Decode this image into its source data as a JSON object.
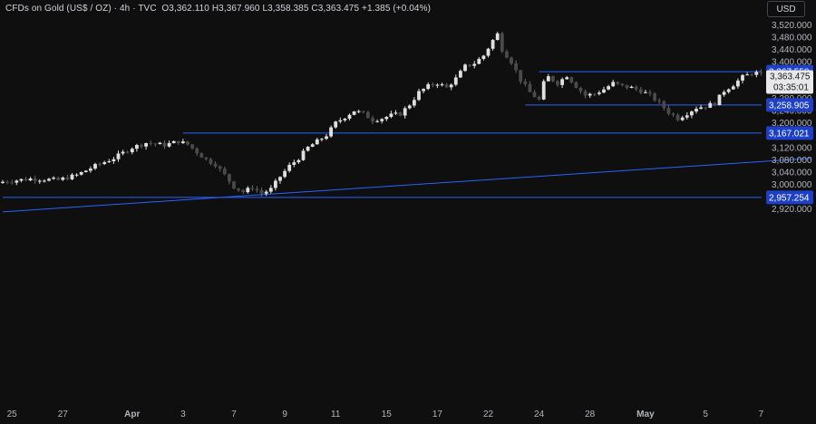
{
  "header": {
    "symbol": "CFDs on Gold (US$ / OZ)",
    "interval": "4h",
    "source": "TVC",
    "open": "O3,362.110",
    "high": "H3,367.960",
    "low": "L3,358.385",
    "close": "C3,363.475",
    "change": "+1.385 (+0.04%)"
  },
  "currency_label": "USD",
  "colors": {
    "background": "#0f0f0f",
    "candle_up": "#e0e0e0",
    "candle_down": "#4a4a4a",
    "level_line": "#2962ff",
    "label_fill": "#1e40c8",
    "axis_text": "#b2b5be"
  },
  "chart_data": {
    "type": "candlestick",
    "y_axis": {
      "ticks": [
        3520,
        3480,
        3440,
        3400,
        3360,
        3320,
        3280,
        3240,
        3200,
        3160,
        3120,
        3080,
        3040,
        3000,
        2960,
        2920
      ],
      "tick_labels": [
        "3,520.000",
        "3,480.000",
        "3,440.000",
        "3,400.000",
        "3,360.000",
        "3,320.000",
        "3,280.000",
        "3,240.000",
        "3,200.000",
        "3,160.000",
        "3,120.000",
        "3,080.000",
        "3,040.000",
        "3,000.000",
        "2,960.000",
        "2,920.000"
      ],
      "range": [
        2900,
        3530
      ]
    },
    "x_axis": {
      "labels": [
        "25",
        "27",
        "Apr",
        "3",
        "7",
        "9",
        "11",
        "15",
        "17",
        "22",
        "24",
        "28",
        "May",
        "5",
        "7"
      ],
      "label_bars": [
        2,
        13,
        28,
        39,
        50,
        61,
        72,
        83,
        94,
        105,
        116,
        127,
        139,
        152,
        164
      ],
      "bold": [
        "Apr",
        "May"
      ]
    },
    "levels": [
      {
        "value": 3367.55,
        "label": "3,367.550",
        "start_bar": 116
      },
      {
        "value": 3258.905,
        "label": "3,258.905",
        "start_bar": 113
      },
      {
        "value": 3167.021,
        "label": "3,167.021",
        "start_bar": 39
      },
      {
        "value": 2957.254,
        "label": "2,957.254",
        "start_bar": 0
      }
    ],
    "trendline": {
      "from": {
        "bar": 0,
        "price": 2910
      },
      "to": {
        "bar": 175,
        "price": 3085
      }
    },
    "last_price": {
      "value": 3363.475,
      "label": "3,363.475",
      "countdown": "03:35:01"
    },
    "bar_count": 164,
    "close_path": [
      [
        0,
        3008
      ],
      [
        6,
        3018
      ],
      [
        12,
        3014
      ],
      [
        16,
        3030
      ],
      [
        20,
        3060
      ],
      [
        24,
        3085
      ],
      [
        28,
        3120
      ],
      [
        31,
        3135
      ],
      [
        35,
        3128
      ],
      [
        38,
        3140
      ],
      [
        40,
        3130
      ],
      [
        42,
        3105
      ],
      [
        44,
        3080
      ],
      [
        46,
        3065
      ],
      [
        48,
        3030
      ],
      [
        50,
        2992
      ],
      [
        52,
        2975
      ],
      [
        54,
        2990
      ],
      [
        56,
        2970
      ],
      [
        58,
        2984
      ],
      [
        60,
        3025
      ],
      [
        62,
        3060
      ],
      [
        64,
        3085
      ],
      [
        66,
        3120
      ],
      [
        68,
        3140
      ],
      [
        70,
        3160
      ],
      [
        72,
        3200
      ],
      [
        74,
        3220
      ],
      [
        76,
        3240
      ],
      [
        78,
        3230
      ],
      [
        80,
        3210
      ],
      [
        82,
        3215
      ],
      [
        84,
        3225
      ],
      [
        86,
        3230
      ],
      [
        88,
        3260
      ],
      [
        90,
        3300
      ],
      [
        92,
        3320
      ],
      [
        94,
        3330
      ],
      [
        96,
        3315
      ],
      [
        98,
        3345
      ],
      [
        100,
        3385
      ],
      [
        102,
        3395
      ],
      [
        104,
        3420
      ],
      [
        106,
        3470
      ],
      [
        107,
        3490
      ],
      [
        108,
        3440
      ],
      [
        110,
        3400
      ],
      [
        112,
        3340
      ],
      [
        114,
        3300
      ],
      [
        116,
        3275
      ],
      [
        117,
        3330
      ],
      [
        118,
        3350
      ],
      [
        120,
        3330
      ],
      [
        122,
        3355
      ],
      [
        124,
        3320
      ],
      [
        126,
        3290
      ],
      [
        128,
        3295
      ],
      [
        130,
        3310
      ],
      [
        132,
        3330
      ],
      [
        134,
        3320
      ],
      [
        136,
        3315
      ],
      [
        138,
        3305
      ],
      [
        140,
        3290
      ],
      [
        142,
        3265
      ],
      [
        144,
        3235
      ],
      [
        146,
        3215
      ],
      [
        148,
        3232
      ],
      [
        150,
        3250
      ],
      [
        152,
        3255
      ],
      [
        154,
        3265
      ],
      [
        156,
        3305
      ],
      [
        158,
        3325
      ],
      [
        160,
        3350
      ],
      [
        162,
        3362
      ],
      [
        164,
        3363.475
      ]
    ]
  }
}
